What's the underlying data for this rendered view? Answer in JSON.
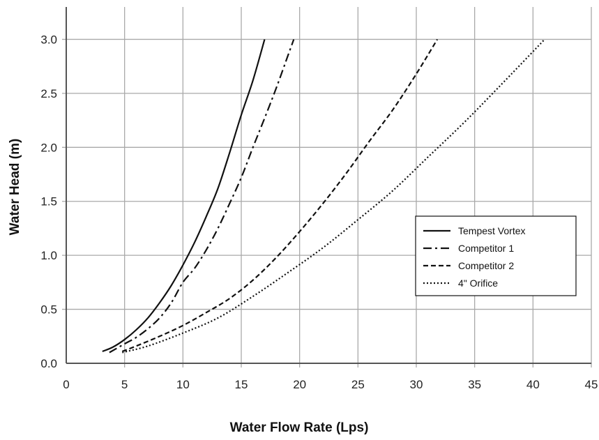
{
  "chart_data": {
    "type": "line",
    "xlabel": "Water Flow Rate (Lps)",
    "ylabel": "Water Head (m)",
    "xlim": [
      0,
      45
    ],
    "ylim": [
      0,
      3.3
    ],
    "x_ticks": [
      0,
      5,
      10,
      15,
      20,
      25,
      30,
      35,
      40,
      45
    ],
    "y_ticks": [
      0.0,
      0.5,
      1.0,
      1.5,
      2.0,
      2.5,
      3.0
    ],
    "x_tick_labels": [
      "0",
      "5",
      "10",
      "15",
      "20",
      "25",
      "30",
      "35",
      "40",
      "45"
    ],
    "y_tick_labels": [
      "0.0",
      "0.5",
      "1.0",
      "1.5",
      "2.0",
      "2.5",
      "3.0"
    ],
    "grid": true,
    "legend_position": "right",
    "series": [
      {
        "name": "Tempest Vortex",
        "line_style": "solid",
        "x": [
          3.1,
          4.0,
          5.0,
          6.0,
          7.0,
          8.0,
          9.0,
          10.0,
          11.0,
          12.0,
          13.0,
          14.0,
          15.0,
          16.0,
          17.0
        ],
        "y": [
          0.11,
          0.15,
          0.22,
          0.31,
          0.42,
          0.56,
          0.72,
          0.91,
          1.12,
          1.36,
          1.62,
          1.95,
          2.3,
          2.62,
          3.0
        ]
      },
      {
        "name": "Competitor 1",
        "line_style": "dash-dot",
        "x": [
          3.7,
          5.0,
          6.0,
          7.0,
          8.0,
          9.0,
          10.0,
          11.0,
          12.0,
          13.0,
          14.0,
          15.0,
          16.0,
          17.0,
          18.0,
          19.0,
          19.5
        ],
        "y": [
          0.1,
          0.18,
          0.24,
          0.32,
          0.42,
          0.56,
          0.75,
          0.88,
          1.05,
          1.25,
          1.48,
          1.72,
          2.0,
          2.27,
          2.55,
          2.85,
          3.0
        ]
      },
      {
        "name": "Competitor 2",
        "line_style": "dashed",
        "x": [
          4.8,
          6.0,
          8.0,
          10.0,
          12.0,
          14.0,
          16.0,
          18.0,
          20.0,
          22.0,
          24.0,
          26.0,
          28.0,
          30.0,
          31.8
        ],
        "y": [
          0.11,
          0.16,
          0.25,
          0.35,
          0.47,
          0.6,
          0.77,
          0.98,
          1.22,
          1.48,
          1.76,
          2.06,
          2.35,
          2.68,
          3.0
        ]
      },
      {
        "name": "4\" Orifice",
        "line_style": "dotted",
        "x": [
          4.8,
          7.0,
          10.0,
          13.0,
          16.0,
          19.0,
          22.0,
          25.0,
          28.0,
          31.0,
          34.0,
          37.0,
          41.0
        ],
        "y": [
          0.1,
          0.16,
          0.28,
          0.42,
          0.62,
          0.84,
          1.07,
          1.33,
          1.6,
          1.91,
          2.22,
          2.55,
          3.0
        ]
      }
    ]
  }
}
